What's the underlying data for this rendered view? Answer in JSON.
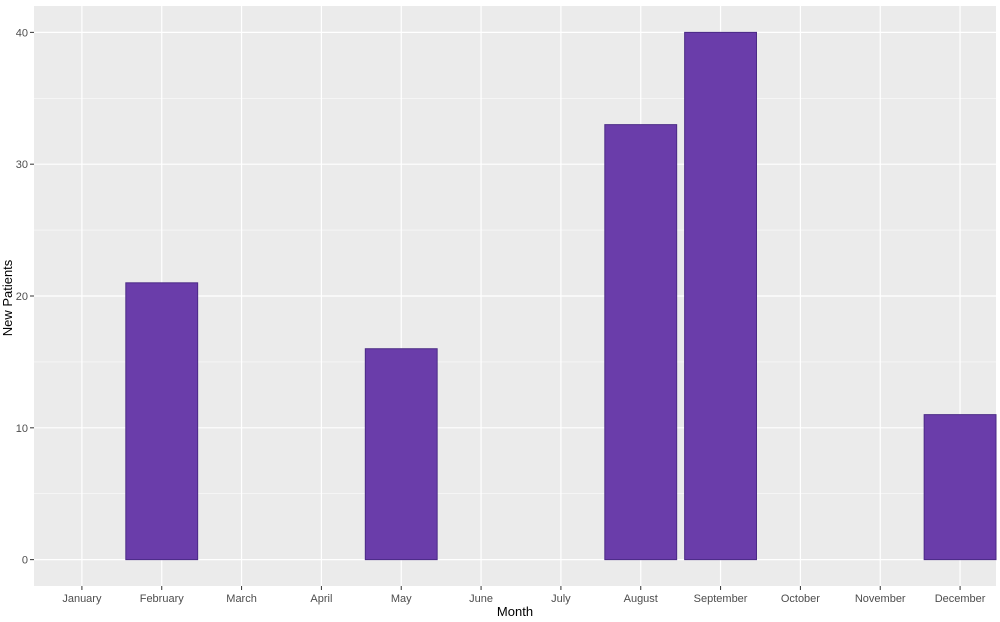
{
  "chart_data": {
    "type": "bar",
    "categories": [
      "January",
      "February",
      "March",
      "April",
      "May",
      "June",
      "July",
      "August",
      "September",
      "October",
      "November",
      "December"
    ],
    "bars": [
      {
        "x": 2,
        "value": 21
      },
      {
        "x": 5,
        "value": 16
      },
      {
        "x": 8,
        "value": 33
      },
      {
        "x": 9,
        "value": 40
      },
      {
        "x": 12,
        "value": 11
      }
    ],
    "xlabel": "Month",
    "ylabel": "New Patients",
    "ylim": [
      -2,
      42
    ],
    "xlim": [
      0.4,
      12.45
    ],
    "yticks": [
      0,
      10,
      20,
      30,
      40
    ],
    "ytick_labels": [
      "0",
      "10",
      "20",
      "30",
      "40"
    ],
    "grid": true,
    "colors": {
      "panel": "#ebebeb",
      "grid_major": "#ffffff",
      "bar_fill": "#6a3daa",
      "bar_stroke": "#4b2a86"
    }
  }
}
